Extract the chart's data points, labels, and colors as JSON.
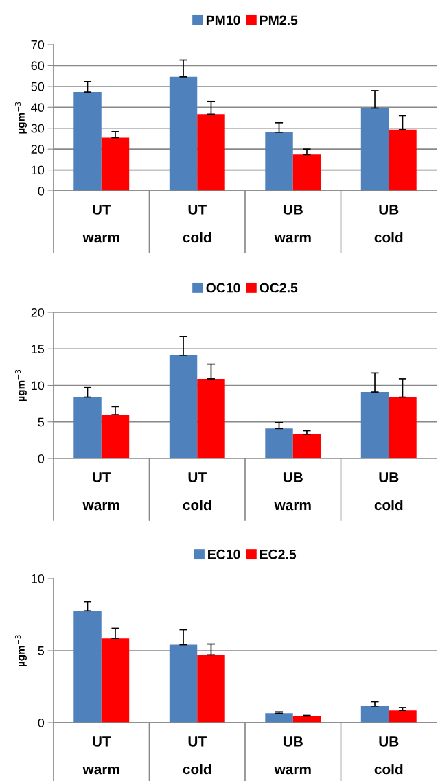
{
  "chart_data": [
    {
      "type": "bar",
      "ylabel": "µgm$^{−3}$",
      "categories": [
        "UT\nwarm",
        "UT\ncold",
        "UB\nwarm",
        "UB\ncold"
      ],
      "ylim": [
        0,
        70
      ],
      "yticks": [
        0,
        10,
        20,
        30,
        40,
        50,
        60,
        70
      ],
      "grid": "y",
      "legend": "top",
      "series": [
        {
          "name": "PM10",
          "color": "#4f81bd",
          "values": [
            47.3,
            54.6,
            28.0,
            39.6
          ],
          "errors": [
            [
              47.3,
              52.3
            ],
            [
              54.6,
              62.6
            ],
            [
              28.0,
              32.6
            ],
            [
              39.6,
              48.0
            ]
          ]
        },
        {
          "name": "PM2.5",
          "color": "#ff0000",
          "values": [
            25.5,
            36.7,
            17.3,
            29.3
          ],
          "errors": [
            [
              25.5,
              28.3
            ],
            [
              36.7,
              42.8
            ],
            [
              17.3,
              20.0
            ],
            [
              29.3,
              36.0
            ]
          ]
        }
      ]
    },
    {
      "type": "bar",
      "ylabel": "µgm$^{−3}$",
      "categories": [
        "UT\nwarm",
        "UT\ncold",
        "UB\nwarm",
        "UB\ncold"
      ],
      "ylim": [
        0,
        20
      ],
      "yticks": [
        0,
        5,
        10,
        15,
        20
      ],
      "grid": "y",
      "legend": "top",
      "series": [
        {
          "name": "OC10",
          "color": "#4f81bd",
          "values": [
            8.4,
            14.1,
            4.1,
            9.1
          ],
          "errors": [
            [
              8.4,
              9.7
            ],
            [
              14.1,
              16.7
            ],
            [
              4.1,
              4.9
            ],
            [
              9.1,
              11.7
            ]
          ]
        },
        {
          "name": "OC2.5",
          "color": "#ff0000",
          "values": [
            6.0,
            10.9,
            3.3,
            8.4
          ],
          "errors": [
            [
              6.0,
              7.1
            ],
            [
              10.9,
              12.9
            ],
            [
              3.3,
              3.8
            ],
            [
              8.4,
              10.9
            ]
          ]
        }
      ]
    },
    {
      "type": "bar",
      "ylabel": "µgm$^{−3}$",
      "categories": [
        "UT\nwarm",
        "UT\ncold",
        "UB\nwarm",
        "UB\ncold"
      ],
      "ylim": [
        0,
        10
      ],
      "yticks": [
        0,
        5,
        10
      ],
      "grid": "y",
      "legend": "top",
      "series": [
        {
          "name": "EC10",
          "color": "#4f81bd",
          "values": [
            7.75,
            5.4,
            0.65,
            1.15
          ],
          "errors": [
            [
              7.75,
              8.4
            ],
            [
              5.4,
              6.45
            ],
            [
              0.65,
              0.75
            ],
            [
              1.15,
              1.45
            ]
          ]
        },
        {
          "name": "EC2.5",
          "color": "#ff0000",
          "values": [
            5.85,
            4.7,
            0.45,
            0.85
          ],
          "errors": [
            [
              5.85,
              6.55
            ],
            [
              4.7,
              5.45
            ],
            [
              0.45,
              0.5
            ],
            [
              0.85,
              1.05
            ]
          ]
        }
      ]
    }
  ]
}
